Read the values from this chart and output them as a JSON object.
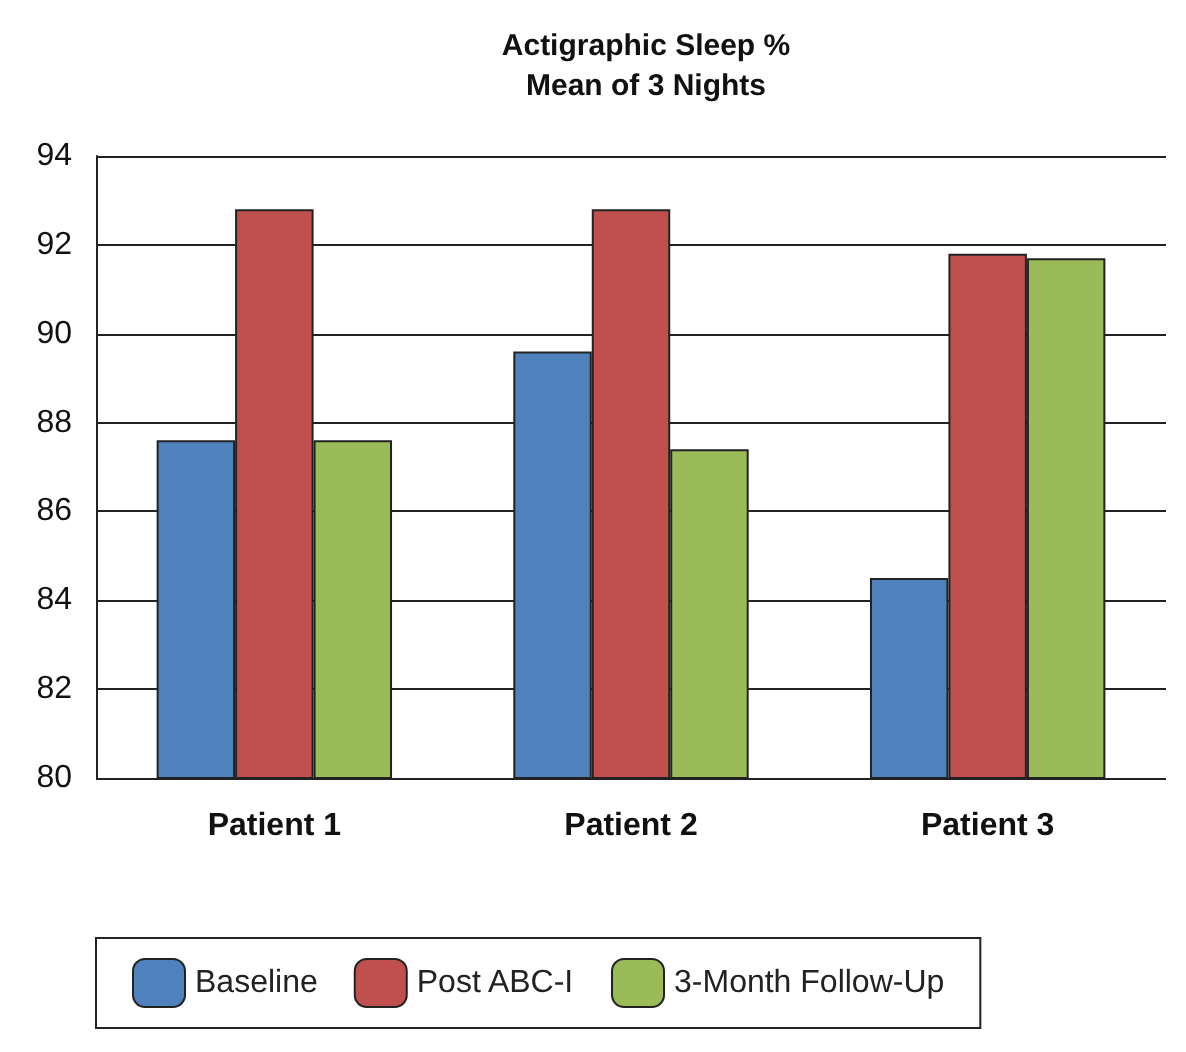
{
  "chart_data": {
    "type": "bar",
    "title": "Actigraphic Sleep %\nMean of 3 Nights",
    "categories": [
      "Patient 1",
      "Patient 2",
      "Patient 3"
    ],
    "series": [
      {
        "name": "Baseline",
        "color": "#4f81bd",
        "values": [
          87.6,
          89.6,
          84.5
        ]
      },
      {
        "name": "Post ABC-I",
        "color": "#c0504d",
        "values": [
          92.8,
          92.8,
          91.8
        ]
      },
      {
        "name": "3-Month Follow-Up",
        "color": "#9bbb59",
        "values": [
          87.6,
          87.4,
          91.7
        ]
      }
    ],
    "ylim": [
      80,
      94
    ],
    "yticks": [
      80,
      82,
      84,
      86,
      88,
      90,
      92,
      94
    ],
    "grid": "y",
    "legend": "bottom"
  }
}
